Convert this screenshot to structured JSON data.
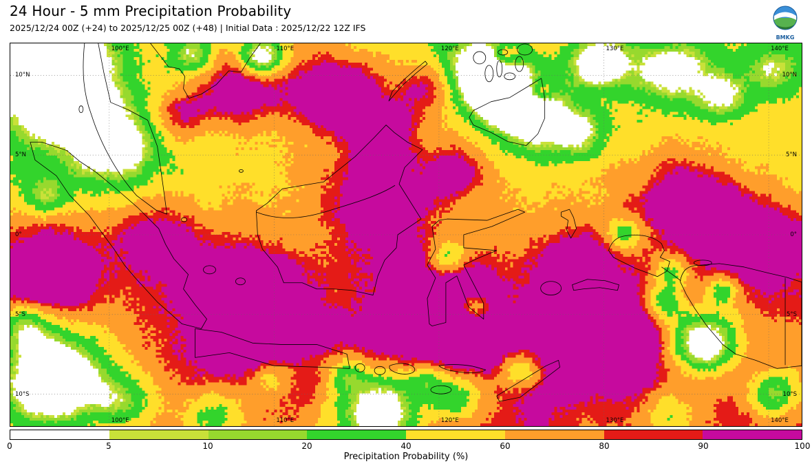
{
  "header": {
    "title": "24 Hour - 5 mm Precipitation Probability",
    "subtitle": "2025/12/24 00Z (+24) to 2025/12/25 00Z (+48) | Initial Data : 2025/12/22 12Z IFS",
    "logo": {
      "caption": "BMKG"
    }
  },
  "map": {
    "lon_labels": [
      {
        "label": "100°E",
        "lon": 100
      },
      {
        "label": "110°E",
        "lon": 110
      },
      {
        "label": "120°E",
        "lon": 120
      },
      {
        "label": "130°E",
        "lon": 130
      },
      {
        "label": "140°E",
        "lon": 140
      }
    ],
    "lat_labels": [
      {
        "label": "10°N",
        "lat": 10
      },
      {
        "label": "5°N",
        "lat": 5
      },
      {
        "label": "0°",
        "lat": 0
      },
      {
        "label": "5°S",
        "lat": -5
      },
      {
        "label": "10°S",
        "lat": -10
      }
    ]
  },
  "legend": {
    "label": "Precipitation Probability (%)",
    "ticks": [
      0,
      5,
      10,
      20,
      40,
      60,
      80,
      90,
      100
    ],
    "colors": [
      "#ffffff",
      "#c9e139",
      "#97d92e",
      "#33d42c",
      "#ffdf2a",
      "#ff9e2b",
      "#e41b17",
      "#c60a9e"
    ]
  }
}
